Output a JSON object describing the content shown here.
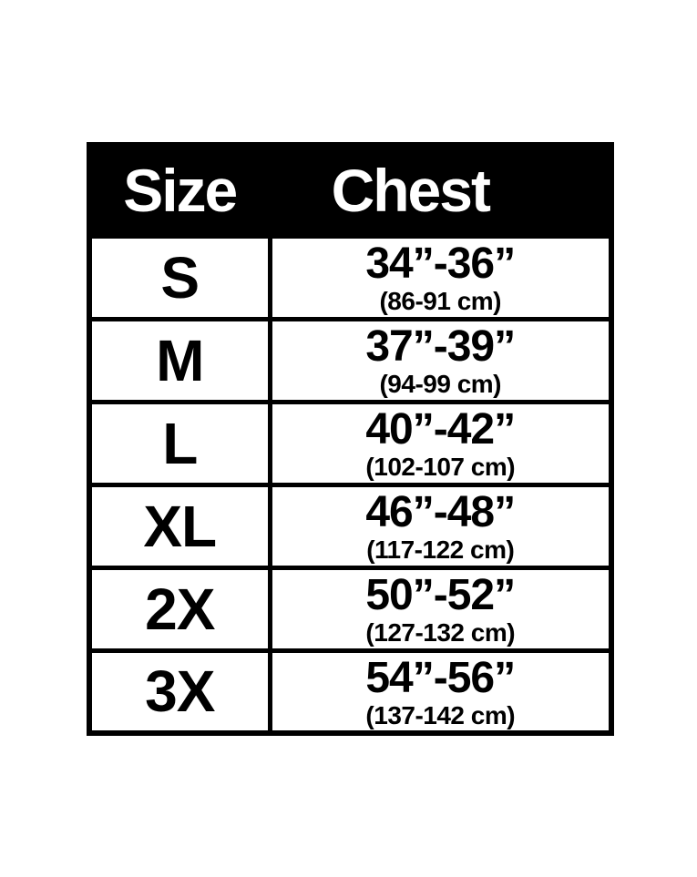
{
  "chart_data": {
    "type": "table",
    "columns": [
      "Size",
      "Chest"
    ],
    "rows": [
      {
        "size": "S",
        "chest_inches": "34”-36”",
        "chest_cm": "(86-91 cm)"
      },
      {
        "size": "M",
        "chest_inches": "37”-39”",
        "chest_cm": "(94-99 cm)"
      },
      {
        "size": "L",
        "chest_inches": "40”-42”",
        "chest_cm": "(102-107 cm)"
      },
      {
        "size": "XL",
        "chest_inches": "46”-48”",
        "chest_cm": "(117-122 cm)"
      },
      {
        "size": "2X",
        "chest_inches": "50”-52”",
        "chest_cm": "(127-132 cm)"
      },
      {
        "size": "3X",
        "chest_inches": "54”-56”",
        "chest_cm": "(137-142 cm)"
      }
    ],
    "layout": {
      "header_position": "top",
      "grid": "on"
    }
  },
  "colors": {
    "page_background": "#ffffff",
    "header_background": "#000000",
    "header_text": "#ffffff",
    "cell_background": "#ffffff",
    "cell_text": "#000000",
    "border": "#000000"
  }
}
